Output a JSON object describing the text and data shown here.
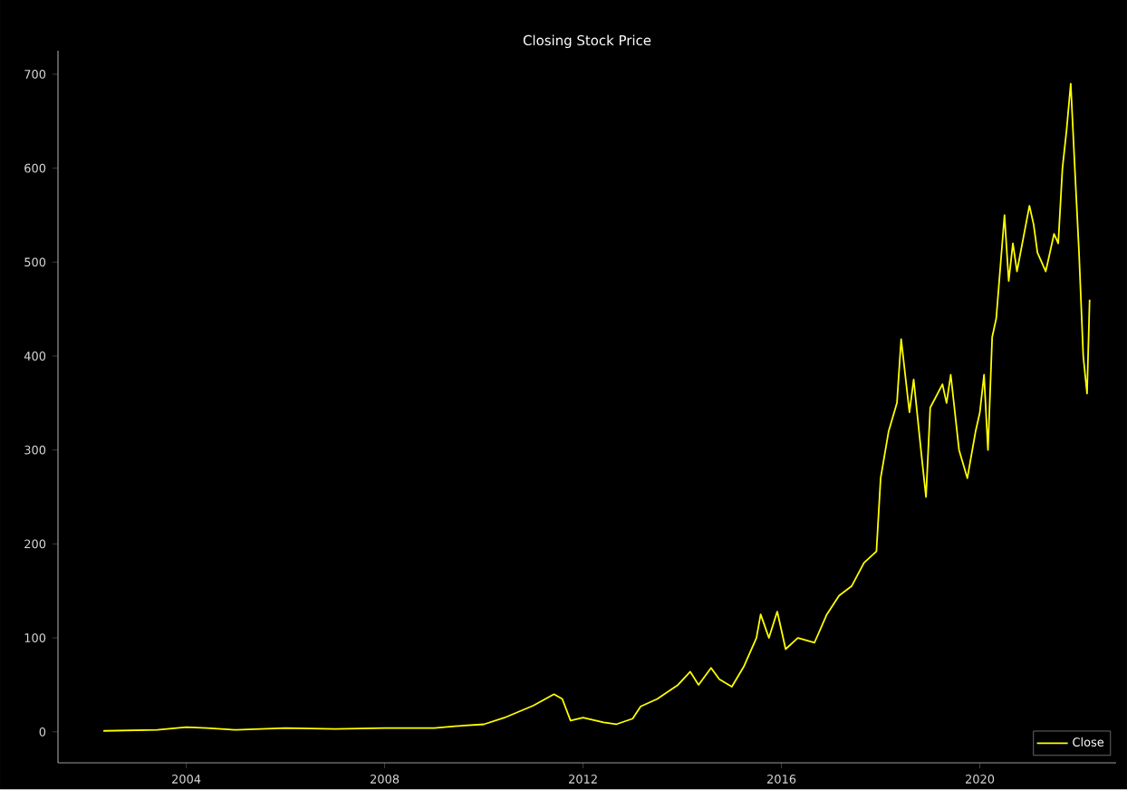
{
  "chart_data": {
    "type": "line",
    "title": "Closing Stock Price",
    "x": [
      "2002-05",
      "2003-06",
      "2004-01",
      "2004-06",
      "2005-01",
      "2006-01",
      "2007-01",
      "2008-01",
      "2009-01",
      "2009-06",
      "2010-01",
      "2010-06",
      "2011-01",
      "2011-06",
      "2011-08",
      "2011-10",
      "2012-01",
      "2012-06",
      "2012-09",
      "2013-01",
      "2013-03",
      "2013-07",
      "2013-12",
      "2014-03",
      "2014-05",
      "2014-08",
      "2014-10",
      "2015-01",
      "2015-04",
      "2015-07",
      "2015-08",
      "2015-10",
      "2015-12",
      "2016-02",
      "2016-05",
      "2016-09",
      "2016-12",
      "2017-03",
      "2017-06",
      "2017-09",
      "2017-12",
      "2018-01",
      "2018-03",
      "2018-05",
      "2018-06",
      "2018-08",
      "2018-09",
      "2018-11",
      "2018-12",
      "2019-01",
      "2019-04",
      "2019-05",
      "2019-06",
      "2019-08",
      "2019-10",
      "2019-12",
      "2020-01",
      "2020-02",
      "2020-03",
      "2020-04",
      "2020-05",
      "2020-07",
      "2020-08",
      "2020-09",
      "2020-10",
      "2021-01",
      "2021-02",
      "2021-03",
      "2021-05",
      "2021-07",
      "2021-08",
      "2021-09",
      "2021-10",
      "2021-11",
      "2021-12",
      "2022-01",
      "2022-02",
      "2022-03-01",
      "2022-03-20"
    ],
    "series": [
      {
        "name": "Close",
        "color": "#ffff00",
        "values": [
          1,
          2,
          5,
          4,
          2,
          4,
          3,
          4,
          4,
          6,
          8,
          15,
          28,
          40,
          35,
          12,
          15,
          10,
          8,
          14,
          27,
          35,
          50,
          64,
          50,
          68,
          56,
          48,
          70,
          100,
          125,
          100,
          128,
          88,
          100,
          95,
          125,
          145,
          155,
          180,
          192,
          270,
          320,
          350,
          418,
          340,
          375,
          290,
          250,
          345,
          370,
          350,
          380,
          300,
          270,
          320,
          340,
          380,
          300,
          420,
          440,
          550,
          480,
          520,
          490,
          560,
          540,
          510,
          490,
          530,
          520,
          600,
          640,
          690,
          600,
          510,
          400,
          360,
          460
        ]
      }
    ],
    "xlim": [
      "2001-06",
      "2022-10"
    ],
    "xticks": [
      "2004",
      "2008",
      "2012",
      "2016",
      "2020"
    ],
    "ylim": [
      -33,
      725
    ],
    "yticks": [
      0,
      100,
      200,
      300,
      400,
      500,
      600,
      700
    ],
    "grid": false,
    "legend": "bottom right",
    "marker": "none",
    "line_style": "solid"
  }
}
